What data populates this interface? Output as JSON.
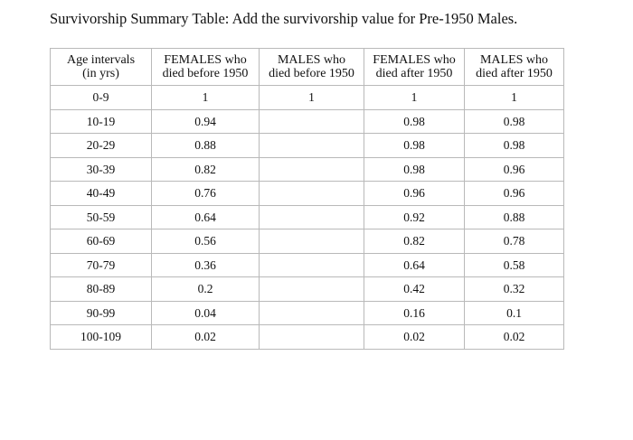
{
  "title": "Survivorship Summary Table: Add the survivorship value for Pre-1950 Males.",
  "table": {
    "headers": [
      {
        "line1": "Age intervals",
        "line2": "(in yrs)"
      },
      {
        "line1": "FEMALES who",
        "line2": "died before 1950"
      },
      {
        "line1": "MALES who",
        "line2": "died before 1950"
      },
      {
        "line1": "FEMALES who",
        "line2": "died after 1950"
      },
      {
        "line1": "MALES who",
        "line2": "died after 1950"
      }
    ],
    "rows": [
      [
        "0-9",
        "1",
        "1",
        "1",
        "1"
      ],
      [
        "10-19",
        "0.94",
        "",
        "0.98",
        "0.98"
      ],
      [
        "20-29",
        "0.88",
        "",
        "0.98",
        "0.98"
      ],
      [
        "30-39",
        "0.82",
        "",
        "0.98",
        "0.96"
      ],
      [
        "40-49",
        "0.76",
        "",
        "0.96",
        "0.96"
      ],
      [
        "50-59",
        "0.64",
        "",
        "0.92",
        "0.88"
      ],
      [
        "60-69",
        "0.56",
        "",
        "0.82",
        "0.78"
      ],
      [
        "70-79",
        "0.36",
        "",
        "0.64",
        "0.58"
      ],
      [
        "80-89",
        "0.2",
        "",
        "0.42",
        "0.32"
      ],
      [
        "90-99",
        "0.04",
        "",
        "0.16",
        "0.1"
      ],
      [
        "100-109",
        "0.02",
        "",
        "0.02",
        "0.02"
      ]
    ]
  }
}
